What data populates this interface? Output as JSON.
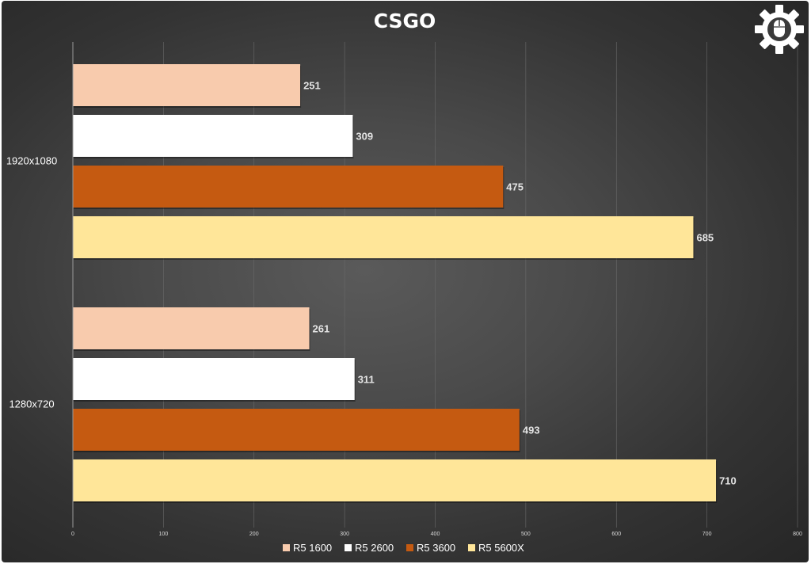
{
  "chart_data": {
    "type": "bar",
    "orientation": "horizontal",
    "title": "CSGO",
    "categories": [
      "1920x1080",
      "1280x720"
    ],
    "series": [
      {
        "name": "R5 1600",
        "color": "#f8cbad",
        "values": [
          251,
          261
        ]
      },
      {
        "name": "R5 2600",
        "color": "#ffffff",
        "values": [
          309,
          311
        ]
      },
      {
        "name": "R5 3600",
        "color": "#c55a11",
        "values": [
          475,
          493
        ]
      },
      {
        "name": "R5 5600X",
        "color": "#ffe699",
        "values": [
          685,
          710
        ]
      }
    ],
    "xlim": [
      0,
      800
    ],
    "xticks": [
      0,
      100,
      200,
      300,
      400,
      500,
      600,
      700,
      800
    ],
    "grid": true,
    "legend": "bottom"
  },
  "logo": {
    "icon": "gear-mouse-icon"
  }
}
